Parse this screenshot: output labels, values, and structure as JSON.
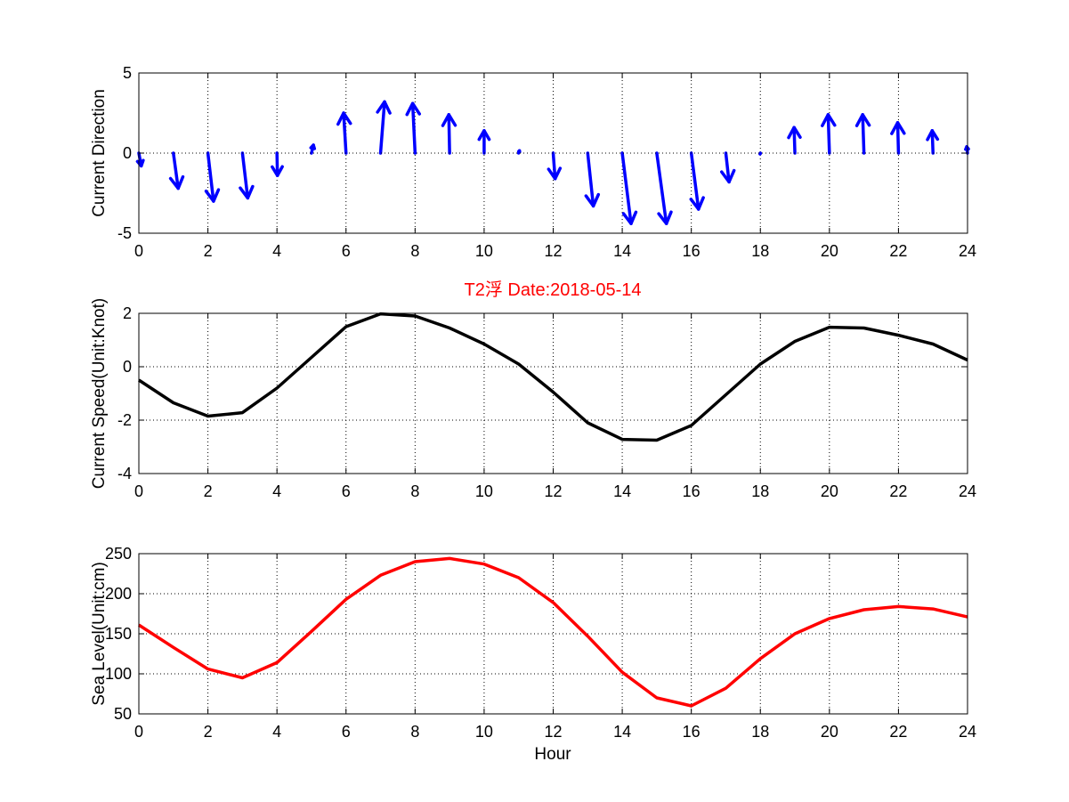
{
  "chart_title": "T2浮    Date:2018-05-14",
  "colors": {
    "title": "#ff0000",
    "arrows": "#0000ff",
    "speed": "#000000",
    "level": "#ff0000"
  },
  "chart_data": [
    {
      "type": "quiver",
      "name": "current-direction",
      "ylabel": "Current Direction",
      "xlim": [
        0,
        24
      ],
      "ylim": [
        -5,
        5
      ],
      "xticks": [
        0,
        2,
        4,
        6,
        8,
        10,
        12,
        14,
        16,
        18,
        20,
        22,
        24
      ],
      "yticks": [
        -5,
        0,
        5
      ],
      "grid": true,
      "x": [
        0,
        1,
        2,
        3,
        4,
        5,
        6,
        7,
        8,
        9,
        10,
        11,
        12,
        13,
        14,
        15,
        16,
        17,
        18,
        19,
        20,
        21,
        22,
        23,
        24
      ],
      "u": [
        0.15,
        0.3,
        0.35,
        0.33,
        0.03,
        0.12,
        -0.15,
        0.25,
        -0.15,
        -0.05,
        0,
        0.05,
        0.12,
        0.35,
        0.55,
        0.6,
        0.45,
        0.2,
        -0.02,
        -0.05,
        -0.08,
        -0.08,
        -0.05,
        -0.05,
        -0.05
      ],
      "v": [
        -0.8,
        -2.2,
        -3.0,
        -2.8,
        -1.4,
        0.5,
        2.5,
        3.2,
        3.1,
        2.4,
        1.4,
        0.15,
        -1.6,
        -3.3,
        -4.4,
        -4.4,
        -3.5,
        -1.8,
        -0.05,
        1.6,
        2.4,
        2.4,
        1.9,
        1.4,
        0.4
      ]
    },
    {
      "type": "line",
      "name": "current-speed",
      "ylabel": "Current Speed(Unit:Knot)",
      "xlim": [
        0,
        24
      ],
      "ylim": [
        -4,
        2
      ],
      "xticks": [
        0,
        2,
        4,
        6,
        8,
        10,
        12,
        14,
        16,
        18,
        20,
        22,
        24
      ],
      "yticks": [
        -4,
        -2,
        0,
        2
      ],
      "grid": true,
      "x": [
        0,
        1,
        2,
        3,
        4,
        5,
        6,
        7,
        8,
        9,
        10,
        11,
        12,
        13,
        14,
        15,
        16,
        17,
        18,
        19,
        20,
        21,
        22,
        23,
        24
      ],
      "series": [
        {
          "name": "Current Speed",
          "values": [
            -0.5,
            -1.35,
            -1.85,
            -1.72,
            -0.8,
            0.35,
            1.5,
            1.98,
            1.9,
            1.45,
            0.85,
            0.1,
            -0.95,
            -2.1,
            -2.72,
            -2.75,
            -2.2,
            -1.05,
            0.1,
            0.95,
            1.48,
            1.45,
            1.18,
            0.85,
            0.25
          ]
        }
      ]
    },
    {
      "type": "line",
      "name": "sea-level",
      "ylabel": "Sea Level(Unit:cm)",
      "xlabel": "Hour",
      "xlim": [
        0,
        24
      ],
      "ylim": [
        50,
        250
      ],
      "xticks": [
        0,
        2,
        4,
        6,
        8,
        10,
        12,
        14,
        16,
        18,
        20,
        22,
        24
      ],
      "yticks": [
        50,
        100,
        150,
        200,
        250
      ],
      "grid": true,
      "x": [
        0,
        1,
        2,
        3,
        4,
        5,
        6,
        7,
        8,
        9,
        10,
        11,
        12,
        13,
        14,
        15,
        16,
        17,
        18,
        19,
        20,
        21,
        22,
        23,
        24
      ],
      "series": [
        {
          "name": "Sea Level",
          "values": [
            161,
            133,
            106,
            95,
            114,
            153,
            193,
            223,
            240,
            244,
            237,
            220,
            189,
            147,
            102,
            70,
            60,
            82,
            119,
            150,
            169,
            180,
            184,
            181,
            171
          ]
        }
      ]
    }
  ]
}
